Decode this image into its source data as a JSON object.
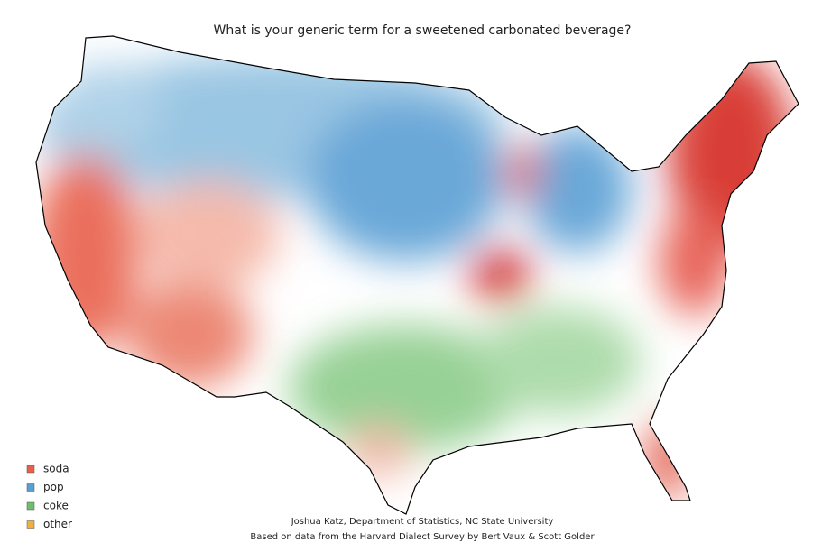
{
  "title": "What is your generic term for a sweetened carbonated beverage?",
  "legend": [
    {
      "label": "soda",
      "color": "#e8604c"
    },
    {
      "label": "pop",
      "color": "#5a9fd4"
    },
    {
      "label": "coke",
      "color": "#6dbf6d"
    },
    {
      "label": "other",
      "color": "#f0b040"
    }
  ],
  "credits": [
    "Joshua Katz, Department of Statistics, NC State University",
    "Based on data from the Harvard Dialect Survey by Bert Vaux & Scott Golder"
  ]
}
